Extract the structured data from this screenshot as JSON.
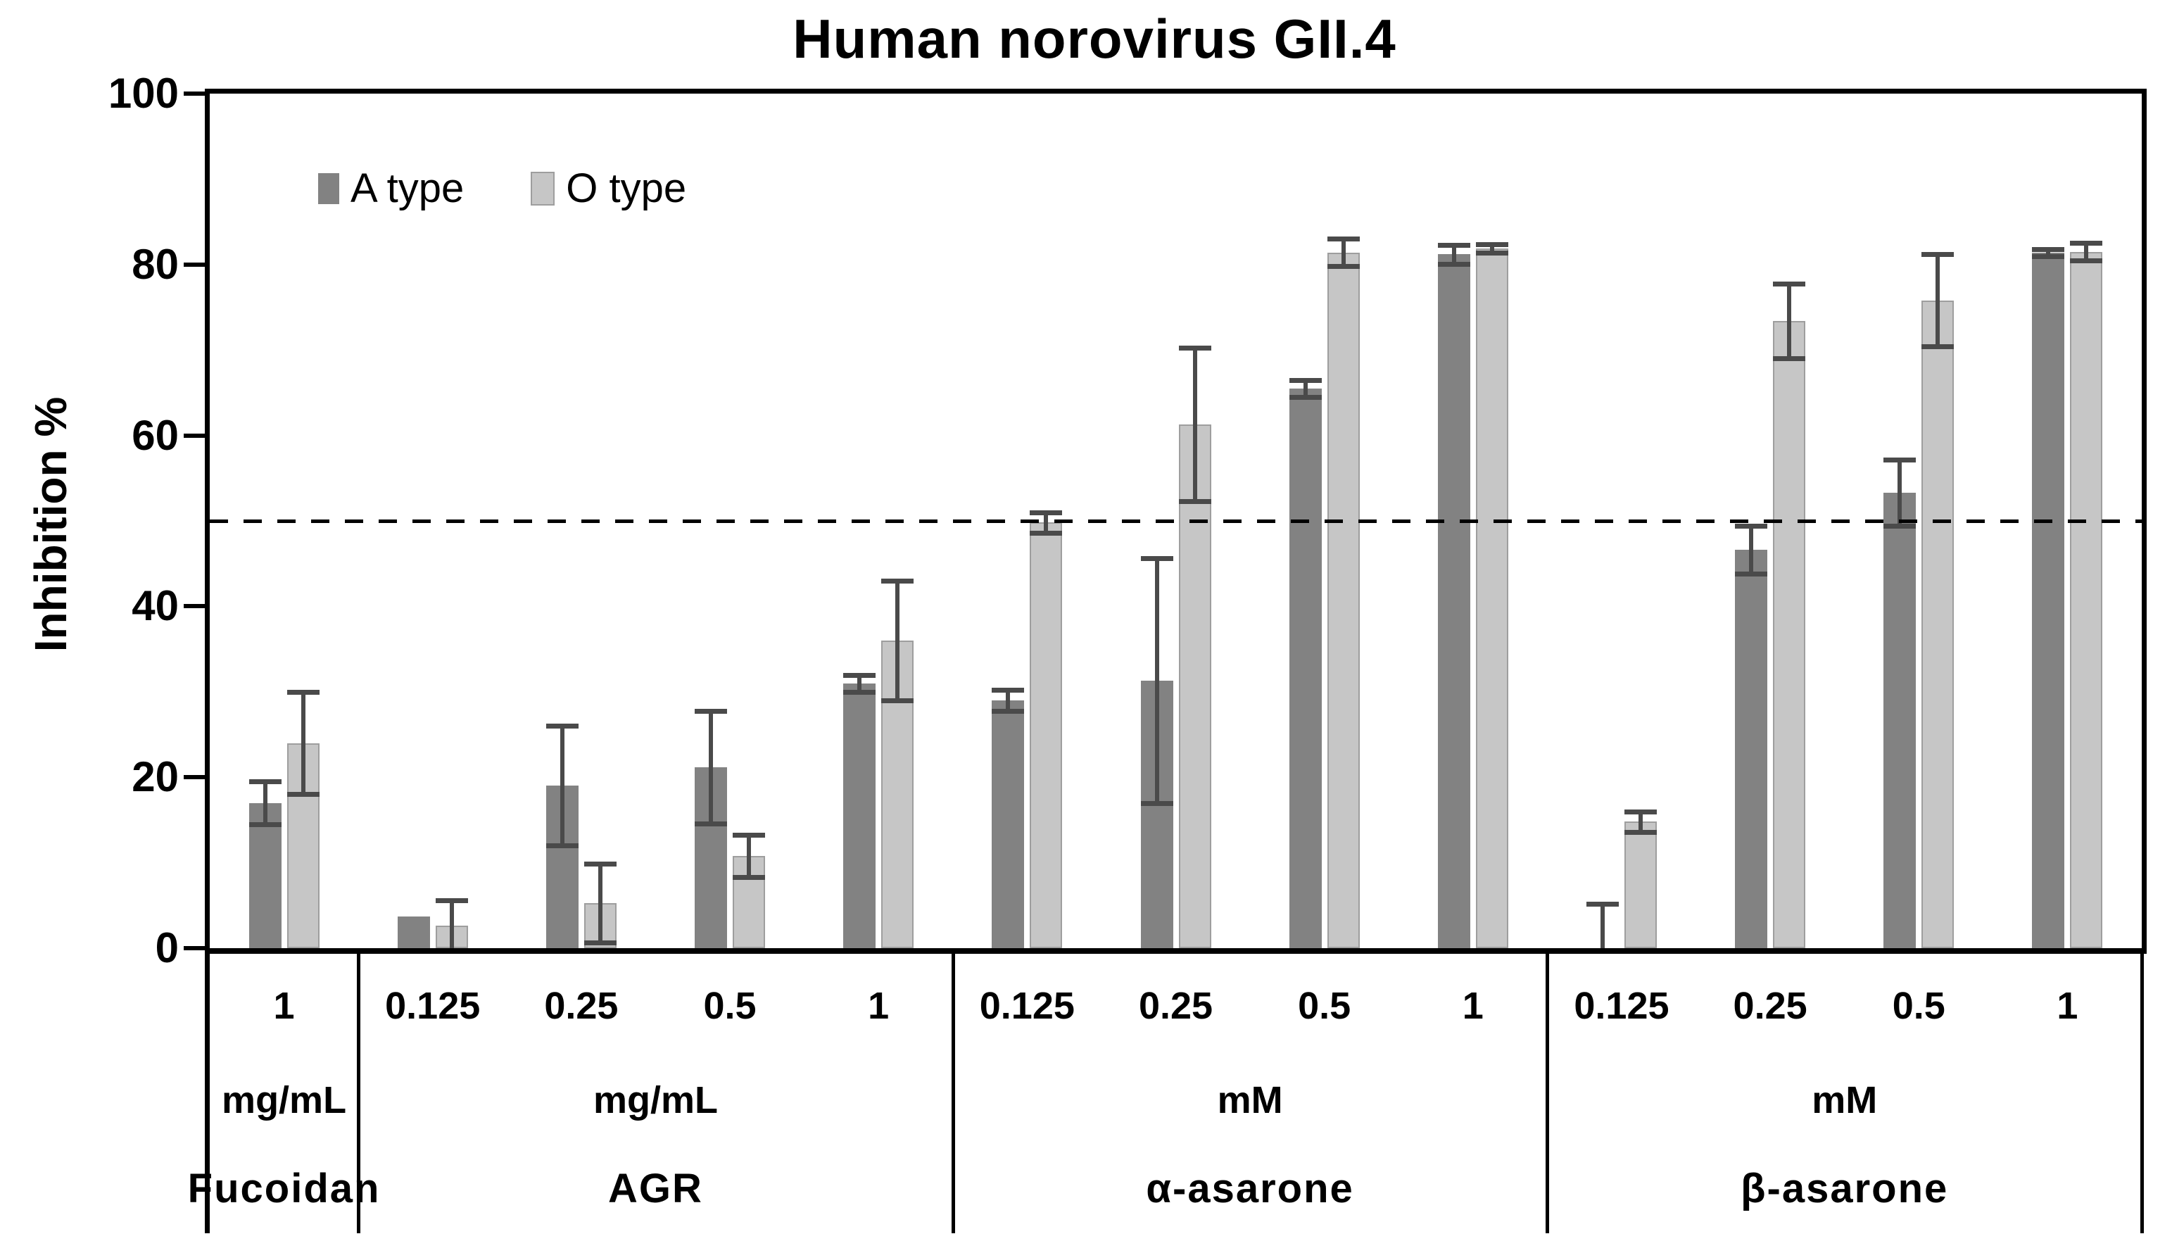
{
  "title": "Human norovirus GII.4",
  "legend": [
    {
      "label": "A type",
      "color": "#828282",
      "border": "none"
    },
    {
      "label": "O type",
      "color": "#c6c6c6",
      "border": "#9e9e9e"
    }
  ],
  "chart_data": {
    "type": "bar",
    "title": "Human norovirus GII.4",
    "ylabel": "Inhibition %",
    "ylim": [
      0,
      100
    ],
    "yticks": [
      0,
      20,
      40,
      60,
      80,
      100
    ],
    "reference_line": 50,
    "grid": "off",
    "legend_position": "top-left-inside",
    "series_names": [
      "A type",
      "O type"
    ],
    "error_bars": true,
    "groups": [
      {
        "name": "Fucoidan",
        "unit": "mg/mL",
        "concentrations": [
          "1"
        ],
        "A": {
          "values": [
            17
          ],
          "errors": [
            2.5
          ]
        },
        "O": {
          "values": [
            24
          ],
          "errors": [
            6
          ]
        }
      },
      {
        "name": "AGR",
        "unit": "mg/mL",
        "concentrations": [
          "0.125",
          "0.25",
          "0.5",
          "1"
        ],
        "A": {
          "values": [
            3.7,
            19,
            21.2,
            31
          ],
          "errors": [
            0,
            7,
            6.6,
            1
          ]
        },
        "O": {
          "values": [
            2.6,
            5.3,
            10.8,
            36
          ],
          "errors": [
            3,
            4.6,
            2.5,
            7
          ]
        }
      },
      {
        "name": "α-asarone",
        "unit": "mM",
        "concentrations": [
          "0.125",
          "0.25",
          "0.5",
          "1"
        ],
        "A": {
          "values": [
            29,
            31.3,
            65.5,
            81.2
          ],
          "errors": [
            1.2,
            14.3,
            1,
            1.1
          ]
        },
        "O": {
          "values": [
            49.8,
            61.3,
            81.4,
            81.9
          ],
          "errors": [
            1.2,
            9,
            1.6,
            0.5
          ]
        }
      },
      {
        "name": "β-asarone",
        "unit": "mM",
        "concentrations": [
          "0.125",
          "0.25",
          "0.5",
          "1"
        ],
        "A": {
          "values": [
            0,
            46.6,
            53.3,
            81.4
          ],
          "errors": [
            5.2,
            2.8,
            3.9,
            0.4
          ]
        },
        "O": {
          "values": [
            14.8,
            73.4,
            75.8,
            81.5
          ],
          "errors": [
            1.2,
            4.4,
            5.4,
            1
          ]
        }
      }
    ],
    "colors": {
      "A": "#828282",
      "O": "#c6c6c6",
      "O_border": "#9e9e9e",
      "error_bar": "#4a4a4a",
      "axis": "#000000",
      "reference_line": "#000000"
    }
  }
}
